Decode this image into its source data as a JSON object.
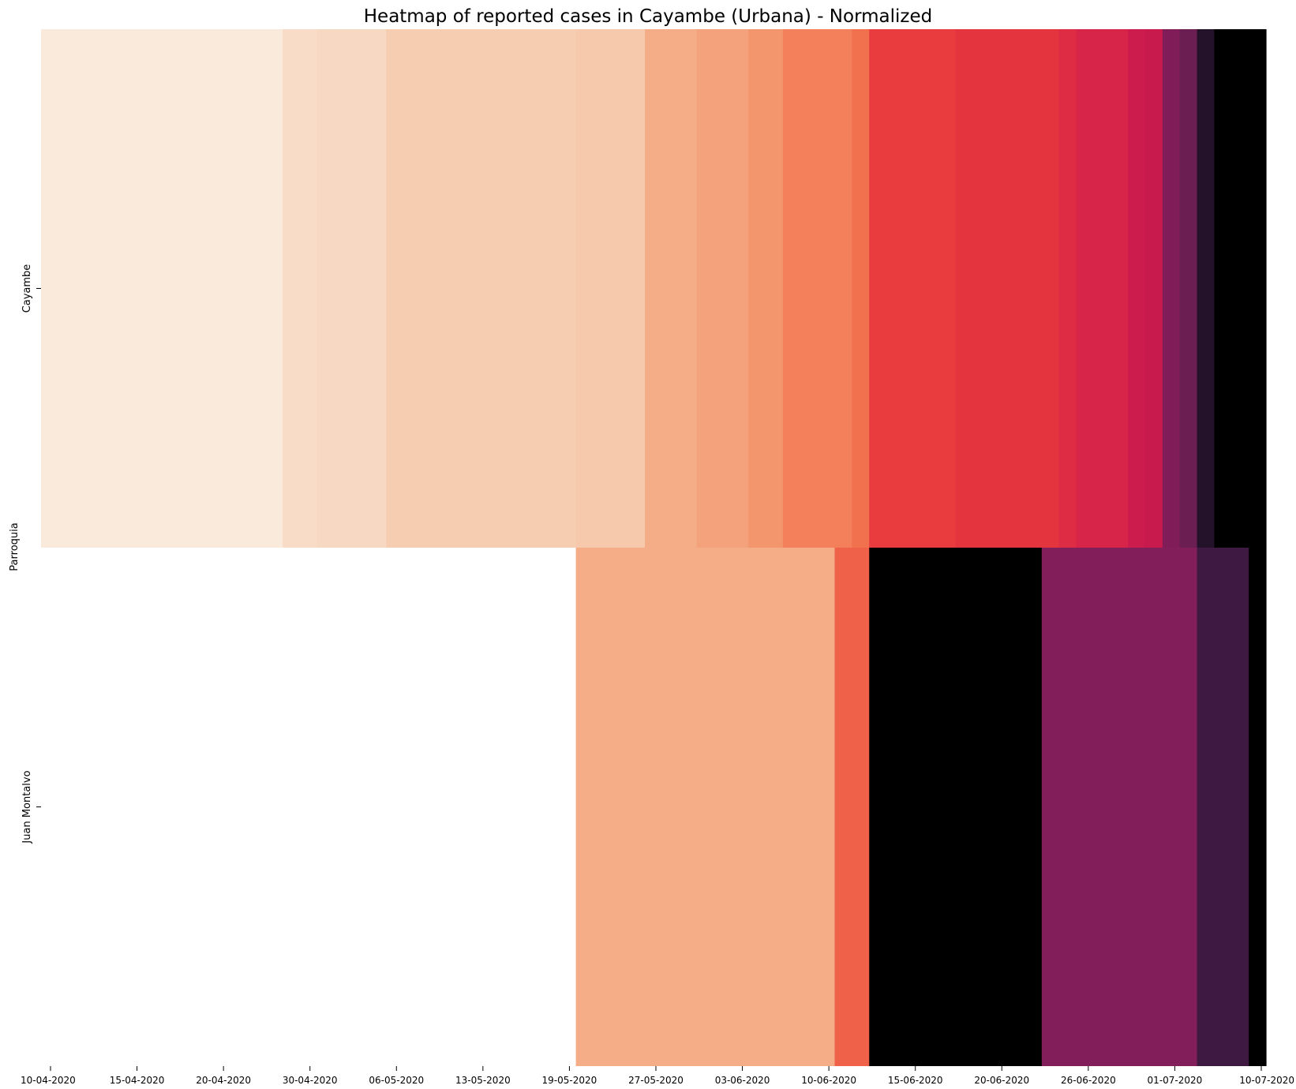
{
  "chart_data": {
    "type": "heatmap",
    "title": "Heatmap of reported cases in Cayambe (Urbana) - Normalized",
    "xlabel": "",
    "ylabel": "Parroquia",
    "rows": [
      "Cayambe",
      "Juan Montalvo"
    ],
    "x_tick_labels": [
      "10-04-2020",
      "15-04-2020",
      "20-04-2020",
      "30-04-2020",
      "06-05-2020",
      "13-05-2020",
      "19-05-2020",
      "27-05-2020",
      "03-06-2020",
      "10-06-2020",
      "15-06-2020",
      "20-06-2020",
      "26-06-2020",
      "01-07-2020",
      "10-07-2020"
    ],
    "num_columns": 71,
    "value_range": [
      0,
      1
    ],
    "colormap": "rocket_r",
    "missing_value_color": "#ffffff",
    "series": [
      {
        "name": "Cayambe",
        "segments": [
          {
            "from_col": 0,
            "to_col": 14,
            "value": 0.02
          },
          {
            "from_col": 14,
            "to_col": 16,
            "value": 0.06
          },
          {
            "from_col": 16,
            "to_col": 20,
            "value": 0.09
          },
          {
            "from_col": 20,
            "to_col": 31,
            "value": 0.13
          },
          {
            "from_col": 31,
            "to_col": 35,
            "value": 0.14
          },
          {
            "from_col": 35,
            "to_col": 38,
            "value": 0.22
          },
          {
            "from_col": 38,
            "to_col": 41,
            "value": 0.25
          },
          {
            "from_col": 41,
            "to_col": 43,
            "value": 0.28
          },
          {
            "from_col": 43,
            "to_col": 47,
            "value": 0.32
          },
          {
            "from_col": 47,
            "to_col": 48,
            "value": 0.34
          },
          {
            "from_col": 48,
            "to_col": 53,
            "value": 0.42
          },
          {
            "from_col": 53,
            "to_col": 59,
            "value": 0.43
          },
          {
            "from_col": 59,
            "to_col": 60,
            "value": 0.45
          },
          {
            "from_col": 60,
            "to_col": 63,
            "value": 0.48
          },
          {
            "from_col": 63,
            "to_col": 64,
            "value": 0.51
          },
          {
            "from_col": 64,
            "to_col": 65,
            "value": 0.54
          },
          {
            "from_col": 65,
            "to_col": 66,
            "value": 0.64
          },
          {
            "from_col": 66,
            "to_col": 67,
            "value": 0.7
          },
          {
            "from_col": 67,
            "to_col": 68,
            "value": 0.9
          },
          {
            "from_col": 68,
            "to_col": 71,
            "value": 1.0
          }
        ]
      },
      {
        "name": "Juan Montalvo",
        "segments": [
          {
            "from_col": 0,
            "to_col": 31,
            "value": null
          },
          {
            "from_col": 31,
            "to_col": 46,
            "value": 0.22
          },
          {
            "from_col": 46,
            "to_col": 48,
            "value": 0.37
          },
          {
            "from_col": 48,
            "to_col": 58,
            "value": 0.55
          },
          {
            "from_col": 58,
            "to_col": 67,
            "value": 0.66
          },
          {
            "from_col": 67,
            "to_col": 70,
            "value": 0.8
          },
          {
            "from_col": 70,
            "to_col": 71,
            "value": 1.0
          }
        ]
      }
    ],
    "colors": {
      "0.02": "#faeadb",
      "0.06": "#f8dcc8",
      "0.09": "#f7d8c2",
      "0.13": "#f6cdb1",
      "0.14": "#f6c9ac",
      "0.22": "#f4ad86",
      "0.25": "#f3a27c",
      "0.28": "#f3956d",
      "0.32": "#f37f5b",
      "0.34": "#f1704e",
      "0.37": "#f0614a",
      "0.42": "#e83c3e",
      "0.43": "#e4353f",
      "0.45": "#de2c44",
      "0.48": "#d72549",
      "0.51": "#cc1b4d",
      "0.54": "#c81a4d",
      "0.64": "#801d58",
      "0.66": "#821e59",
      "0.7": "#6b1e52",
      "0.8": "#3e1942",
      "0.9": "#231229",
      "1.0": "#03061b"
    }
  }
}
